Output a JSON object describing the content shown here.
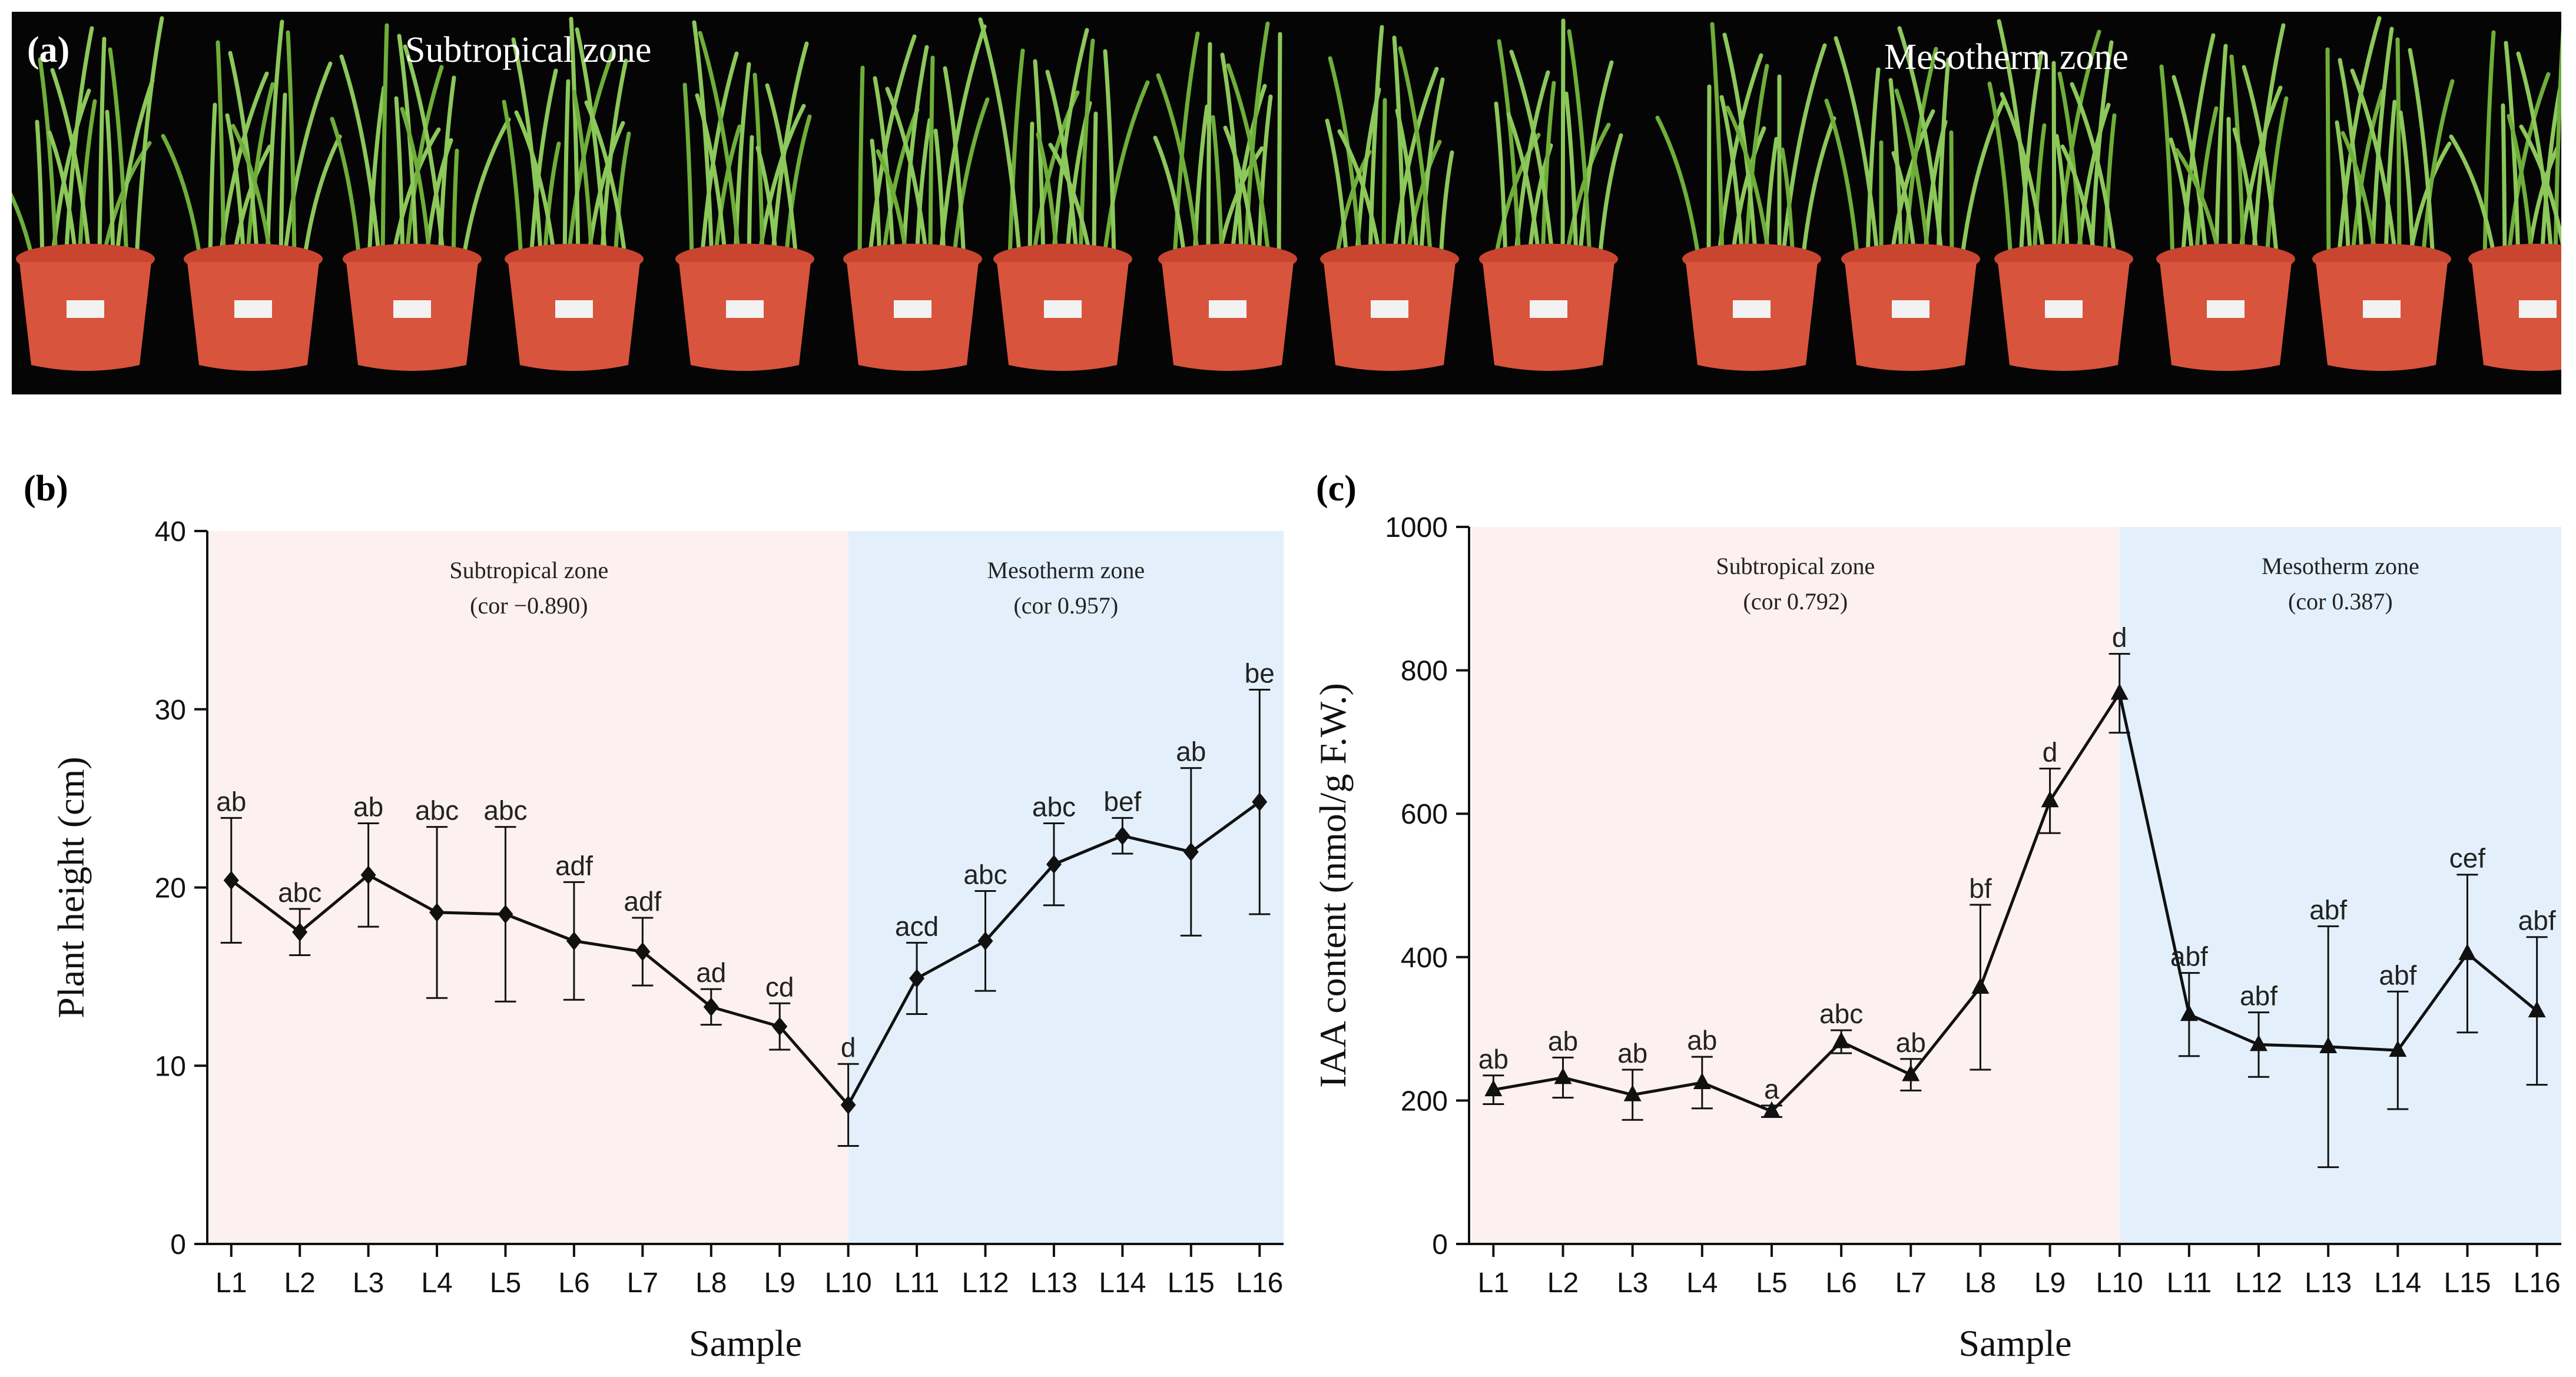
{
  "panel_a": {
    "label": "(a)",
    "titles": [
      "Subtropical zone",
      "Mesotherm zone"
    ],
    "pot_color": "#d8543d"
  },
  "chart_data": [
    {
      "panel": "(b)",
      "type": "line",
      "marker": "diamond",
      "xlabel": "Sample",
      "ylabel": "Plant height (cm)",
      "categories": [
        "L1",
        "L2",
        "L3",
        "L4",
        "L5",
        "L6",
        "L7",
        "L8",
        "L9",
        "L10",
        "L11",
        "L12",
        "L13",
        "L14",
        "L15",
        "L16"
      ],
      "values": [
        20.4,
        17.5,
        20.7,
        18.6,
        18.5,
        17.0,
        16.4,
        13.3,
        12.2,
        7.8,
        14.9,
        17.0,
        21.3,
        22.9,
        22.0,
        24.8
      ],
      "errors": [
        3.5,
        1.3,
        2.9,
        4.8,
        4.9,
        3.3,
        1.9,
        1.0,
        1.3,
        2.3,
        2.0,
        2.8,
        2.3,
        1.0,
        4.7,
        6.3
      ],
      "sig": [
        "ab",
        "abc",
        "ab",
        "abc",
        "abc",
        "adf",
        "adf",
        "ad",
        "cd",
        "d",
        "acd",
        "abc",
        "abc",
        "bef",
        "ab",
        "be"
      ],
      "ylim": [
        0,
        40
      ],
      "yticks": [
        0,
        10,
        20,
        30,
        40
      ],
      "zones": [
        {
          "name": "Subtropical zone",
          "cor": "(cor −0.890)",
          "from": 0,
          "to": 9,
          "color": "#fdf0f0"
        },
        {
          "name": "Mesotherm zone",
          "cor": "(cor 0.957)",
          "from": 9,
          "to": 15,
          "color": "#e3f0fc"
        }
      ]
    },
    {
      "panel": "(c)",
      "type": "line",
      "marker": "triangle",
      "xlabel": "Sample",
      "ylabel": "IAA content (nmol/g F.W.)",
      "categories": [
        "L1",
        "L2",
        "L3",
        "L4",
        "L5",
        "L6",
        "L7",
        "L8",
        "L9",
        "L10",
        "L11",
        "L12",
        "L13",
        "L14",
        "L15",
        "L16"
      ],
      "values": [
        215,
        232,
        208,
        225,
        185,
        282,
        236,
        358,
        618,
        768,
        320,
        278,
        275,
        270,
        405,
        325
      ],
      "errors": [
        20,
        28,
        35,
        36,
        8,
        16,
        22,
        115,
        45,
        55,
        58,
        45,
        168,
        82,
        110,
        103
      ],
      "sig": [
        "ab",
        "ab",
        "ab",
        "ab",
        "a",
        "abc",
        "ab",
        "bf",
        "d",
        "d",
        "abf",
        "abf",
        "abf",
        "abf",
        "cef",
        "abf"
      ],
      "ylim": [
        0,
        1000
      ],
      "yticks": [
        0,
        200,
        400,
        600,
        800,
        1000
      ],
      "zones": [
        {
          "name": "Subtropical zone",
          "cor": "(cor 0.792)",
          "from": 0,
          "to": 9,
          "color": "#fdf0f0"
        },
        {
          "name": "Mesotherm zone",
          "cor": "(cor 0.387)",
          "from": 9,
          "to": 15,
          "color": "#e3f0fc"
        }
      ]
    }
  ]
}
